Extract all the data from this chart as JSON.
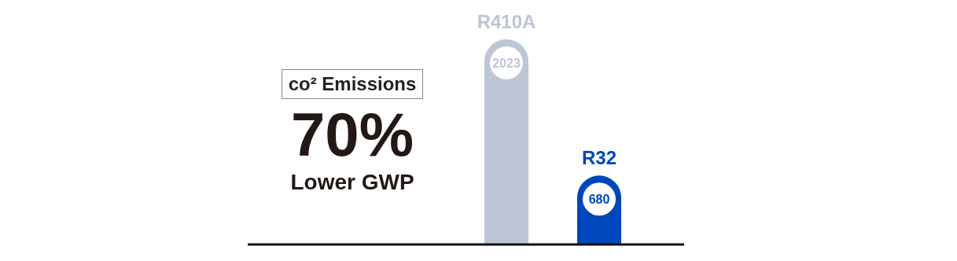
{
  "chart_data": {
    "type": "bar",
    "categories": [
      "R410A",
      "R32"
    ],
    "values": [
      2023,
      680
    ],
    "colors": [
      "#bdc6d4",
      "#0047bb"
    ],
    "data_labels": true,
    "annotations": [
      "co² Emissions",
      "70%",
      "Lower GWP"
    ]
  }
}
